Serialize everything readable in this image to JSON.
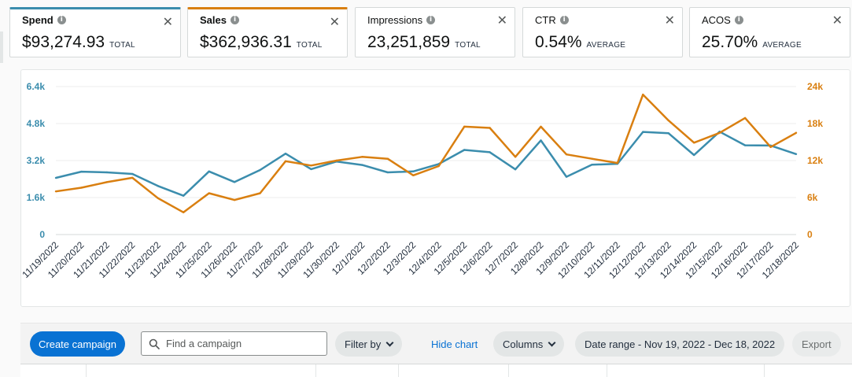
{
  "metrics": [
    {
      "label": "Spend",
      "value": "$93,274.93",
      "suffix": "TOTAL",
      "selected_color": "#3b8dad"
    },
    {
      "label": "Sales",
      "value": "$362,936.31",
      "suffix": "TOTAL",
      "selected_color": "#d97f10"
    },
    {
      "label": "Impressions",
      "value": "23,251,859",
      "suffix": "TOTAL"
    },
    {
      "label": "CTR",
      "value": "0.54%",
      "suffix": "AVERAGE"
    },
    {
      "label": "ACOS",
      "value": "25.70%",
      "suffix": "AVERAGE"
    }
  ],
  "icons": {
    "info": "info-icon",
    "close": "close-icon",
    "search": "search-icon",
    "chevron": "chevron-down-icon"
  },
  "chart_data": {
    "type": "line",
    "x": [
      "11/19/2022",
      "11/20/2022",
      "11/21/2022",
      "11/22/2022",
      "11/23/2022",
      "11/24/2022",
      "11/25/2022",
      "11/26/2022",
      "11/27/2022",
      "11/28/2022",
      "11/29/2022",
      "11/30/2022",
      "12/1/2022",
      "12/2/2022",
      "12/3/2022",
      "12/4/2022",
      "12/5/2022",
      "12/6/2022",
      "12/7/2022",
      "12/8/2022",
      "12/9/2022",
      "12/10/2022",
      "12/11/2022",
      "12/12/2022",
      "12/13/2022",
      "12/14/2022",
      "12/15/2022",
      "12/16/2022",
      "12/17/2022",
      "12/18/2022"
    ],
    "series": [
      {
        "axis": "left",
        "color": "#3b8dad",
        "values": [
          2450,
          2720,
          2690,
          2620,
          2100,
          1680,
          2730,
          2270,
          2790,
          3500,
          2830,
          3160,
          3010,
          2690,
          2730,
          3050,
          3660,
          3560,
          2820,
          4070,
          2500,
          3020,
          3060,
          4440,
          4380,
          3440,
          4450,
          3860,
          3850,
          3480
        ]
      },
      {
        "axis": "right",
        "color": "#d97f10",
        "values": [
          7000,
          7600,
          8500,
          9200,
          5900,
          3600,
          6700,
          5600,
          6700,
          11900,
          11200,
          12000,
          12600,
          12300,
          9600,
          11100,
          17500,
          17300,
          12600,
          17500,
          13000,
          12300,
          11600,
          22700,
          18500,
          14900,
          16500,
          18900,
          14200,
          16500
        ]
      }
    ],
    "y_left": {
      "ticks": [
        "0",
        "1.6k",
        "3.2k",
        "4.8k",
        "6.4k"
      ],
      "range": [
        0,
        6400
      ],
      "color": "#3b8dad"
    },
    "y_right": {
      "ticks": [
        "0",
        "6k",
        "12k",
        "18k",
        "24k"
      ],
      "range": [
        0,
        24000
      ],
      "color": "#d97f10"
    },
    "grid": true
  },
  "toolbar": {
    "create_label": "Create campaign",
    "search_placeholder": "Find a campaign",
    "filter_label": "Filter by",
    "hide_chart_label": "Hide chart",
    "columns_label": "Columns",
    "date_range_label": "Date range - Nov 19, 2022 - Dec 18, 2022",
    "export_label": "Export"
  }
}
